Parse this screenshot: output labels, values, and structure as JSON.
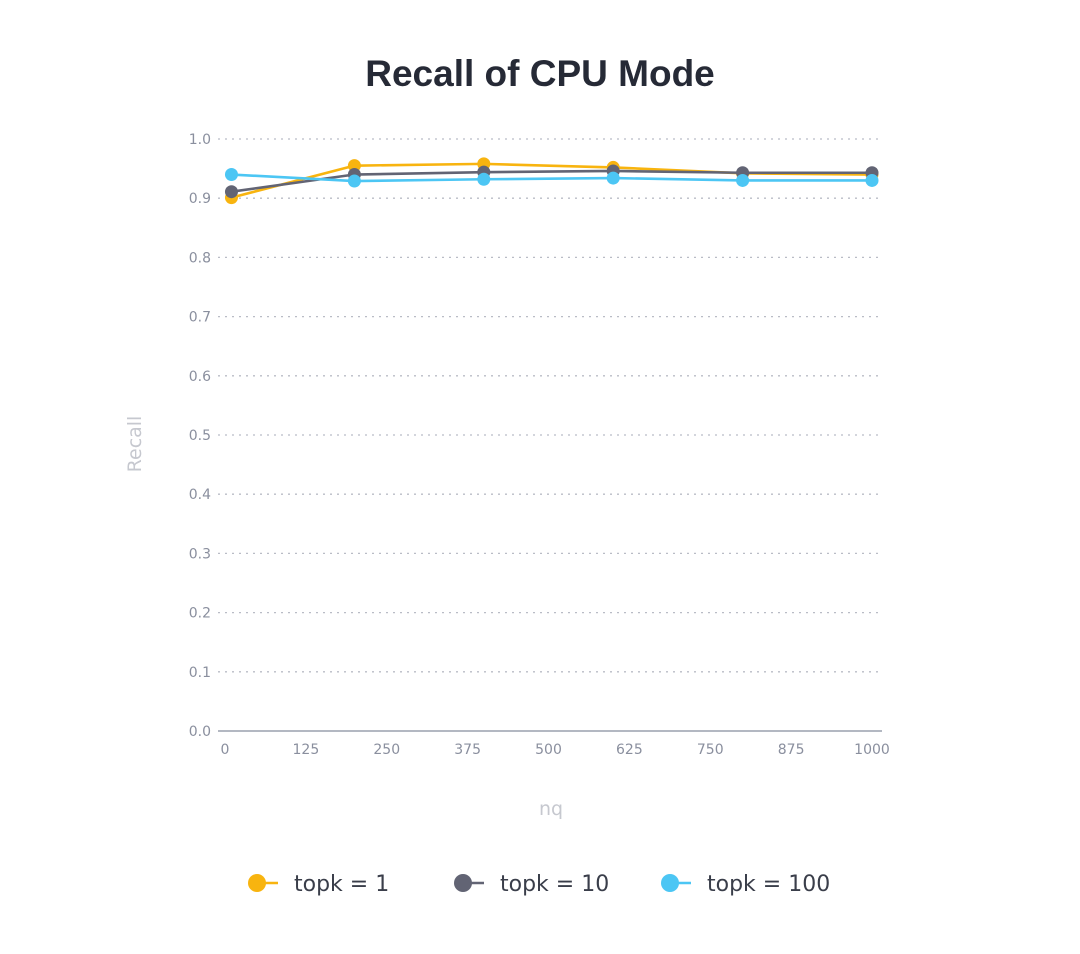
{
  "chart_data": {
    "type": "line",
    "title": "Recall of CPU Mode",
    "xlabel": "nq",
    "ylabel": "Recall",
    "xlim": [
      0,
      1000
    ],
    "ylim": [
      0,
      1.0
    ],
    "x_ticks": [
      "0",
      "125",
      "250",
      "375",
      "500",
      "625",
      "750",
      "875",
      "1000"
    ],
    "y_ticks": [
      "0.0",
      "0.1",
      "0.2",
      "0.3",
      "0.4",
      "0.5",
      "0.6",
      "0.7",
      "0.8",
      "0.9",
      "1.0"
    ],
    "grid": true,
    "legend_position": "bottom",
    "x": [
      10,
      200,
      400,
      600,
      800,
      1000
    ],
    "series": [
      {
        "name": "topk = 1",
        "color": "#f8b40f",
        "values": [
          0.901,
          0.955,
          0.958,
          0.952,
          0.942,
          0.94
        ]
      },
      {
        "name": "topk = 10",
        "color": "#626474",
        "values": [
          0.911,
          0.94,
          0.944,
          0.946,
          0.943,
          0.943
        ]
      },
      {
        "name": "topk = 100",
        "color": "#4cc6f4",
        "values": [
          0.94,
          0.929,
          0.932,
          0.934,
          0.93,
          0.93
        ]
      }
    ]
  }
}
